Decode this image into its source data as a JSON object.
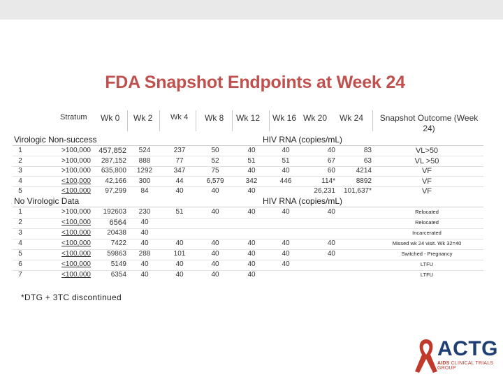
{
  "title": "FDA Snapshot Endpoints at Week 24",
  "headers": {
    "stratum": "Stratum",
    "wk0": "Wk 0",
    "wk2": "Wk  2",
    "wk4": "Wk 4",
    "wk8": "Wk 8",
    "wk12": "Wk 12",
    "wk16": "Wk 16",
    "wk20": "Wk 20",
    "wk24": "Wk 24",
    "outcome": "Snapshot Outcome (Week 24)"
  },
  "section_virologic": {
    "label": "Virologic Non-success",
    "rna_label": "HIV RNA (copies/mL)",
    "rows": [
      {
        "num": "1",
        "stratum": ">100,000",
        "wk0": "457,852",
        "wk2": "524",
        "wk4": "237",
        "wk8": "50",
        "wk12": "40",
        "wk16": "40",
        "wk20": "40",
        "wk24": "83",
        "outcome": "VL>50"
      },
      {
        "num": "2",
        "stratum": ">100,000",
        "wk0": "287,152",
        "wk2": "888",
        "wk4": "77",
        "wk8": "52",
        "wk12": "51",
        "wk16": "51",
        "wk20": "67",
        "wk24": "63",
        "outcome": "VL >50"
      },
      {
        "num": "3",
        "stratum": ">100,000",
        "wk0": "635,800",
        "wk2": "1292",
        "wk4": "347",
        "wk8": "75",
        "wk12": "40",
        "wk16": "40",
        "wk20": "60",
        "wk24": "4214",
        "outcome": "VF"
      },
      {
        "num": "4",
        "stratum": "<100,000",
        "wk0": "42,166",
        "wk2": "300",
        "wk4": "44",
        "wk8": "6,579",
        "wk12": "342",
        "wk16": "446",
        "wk20": "114*",
        "wk24": "8892",
        "outcome": "VF"
      },
      {
        "num": "5",
        "stratum": "<100,000",
        "wk0": "97,299",
        "wk2": "84",
        "wk4": "40",
        "wk8": "40",
        "wk12": "40",
        "wk16": "",
        "wk20": "26,231",
        "wk24": "101,637*",
        "outcome": "VF"
      }
    ]
  },
  "section_novirologic": {
    "label": "No Virologic Data",
    "rna_label": "HIV RNA (copies/mL)",
    "rows": [
      {
        "num": "1",
        "stratum": ">100,000",
        "wk0": "192603",
        "wk2": "230",
        "wk4": "51",
        "wk8": "40",
        "wk12": "40",
        "wk16": "40",
        "wk20": "40",
        "outcome": "Relocated"
      },
      {
        "num": "2",
        "stratum": "<100,000",
        "wk0": "6564",
        "wk2": "40",
        "wk4": "",
        "wk8": "",
        "wk12": "",
        "wk16": "",
        "wk20": "",
        "outcome": "Relocated"
      },
      {
        "num": "3",
        "stratum": "<100,000",
        "wk0": "20438",
        "wk2": "40",
        "wk4": "",
        "wk8": "",
        "wk12": "",
        "wk16": "",
        "wk20": "",
        "outcome": "Incarcerated"
      },
      {
        "num": "4",
        "stratum": "<100,000",
        "wk0": "7422",
        "wk2": "40",
        "wk4": "40",
        "wk8": "40",
        "wk12": "40",
        "wk16": "40",
        "wk20": "40",
        "outcome": "Missed wk 24 visit.  Wk 32=40"
      },
      {
        "num": "5",
        "stratum": "<100,000",
        "wk0": "59863",
        "wk2": "288",
        "wk4": "101",
        "wk8": "40",
        "wk12": "40",
        "wk16": "40",
        "wk20": "40",
        "outcome": "Switched - Pregnancy"
      },
      {
        "num": "6",
        "stratum": "<100,000",
        "wk0": "5149",
        "wk2": "40",
        "wk4": "40",
        "wk8": "40",
        "wk12": "40",
        "wk16": "40",
        "wk20": "",
        "outcome": "LTFU"
      },
      {
        "num": "7",
        "stratum": "<100,000",
        "wk0": "6354",
        "wk2": "40",
        "wk4": "40",
        "wk8": "40",
        "wk12": "40",
        "wk16": "",
        "wk20": "",
        "outcome": "LTFU"
      }
    ]
  },
  "footnote": "*DTG + 3TC discontinued",
  "logo": {
    "text": "ACTG",
    "sub_prefix": "AIDS",
    "sub_rest": " CLINICAL TRIALS GROUP"
  },
  "colors": {
    "title": "#c0504d",
    "logo_blue": "#1f3f73",
    "logo_red": "#c0392b",
    "band": "#e9e9e9"
  }
}
